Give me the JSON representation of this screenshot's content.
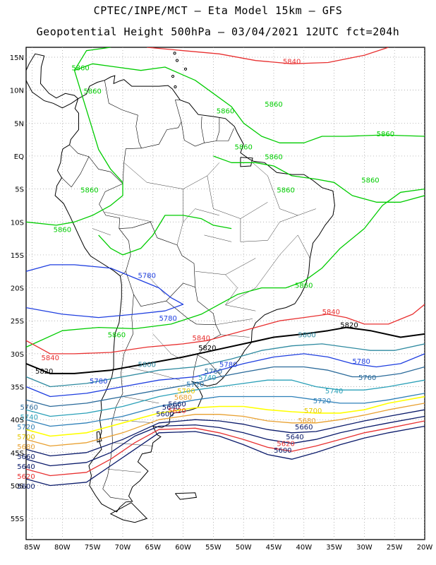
{
  "title_line1": "CPTEC/INPE/MCT –  Eta Model 15km – GFS",
  "title_line2": "Geopotential Height 500hPa – 03/04/2021 12UTC fct=204h",
  "lat_ticks": [
    "15N",
    "10N",
    "5N",
    "EQ",
    "5S",
    "10S",
    "15S",
    "20S",
    "25S",
    "30S",
    "35S",
    "40S",
    "45S",
    "50S",
    "55S"
  ],
  "lon_ticks": [
    "85W",
    "80W",
    "75W",
    "70W",
    "65W",
    "60W",
    "55W",
    "50W",
    "45W",
    "40W",
    "35W",
    "30W",
    "25W",
    "20W"
  ],
  "contours": [
    {
      "value": "5860",
      "color": "#00cc00"
    },
    {
      "value": "5840",
      "color": "#e83030"
    },
    {
      "value": "5820",
      "color": "#000000"
    },
    {
      "value": "5800",
      "color": "#2e8aa0"
    },
    {
      "value": "5780",
      "color": "#1f3fe0"
    },
    {
      "value": "5760",
      "color": "#2a6a9a"
    },
    {
      "value": "5740",
      "color": "#2aa0b8"
    },
    {
      "value": "5720",
      "color": "#2e80b8"
    },
    {
      "value": "5700",
      "color": "#ffff00"
    },
    {
      "value": "5680",
      "color": "#e8a030"
    },
    {
      "value": "5660",
      "color": "#0a1a6a"
    },
    {
      "value": "5640",
      "color": "#0a1a6a"
    },
    {
      "value": "5620",
      "color": "#e83030"
    },
    {
      "value": "5600",
      "color": "#0a1a6a"
    }
  ],
  "labels": [
    {
      "text": "5860",
      "c": 0,
      "lon": -77,
      "lat": 13
    },
    {
      "text": "5860",
      "c": 0,
      "lon": -75,
      "lat": 9.5
    },
    {
      "text": "5860",
      "c": 0,
      "lon": -53,
      "lat": 6.5
    },
    {
      "text": "5860",
      "c": 0,
      "lon": -45,
      "lat": 7.5
    },
    {
      "text": "5860",
      "c": 0,
      "lon": -50,
      "lat": 1
    },
    {
      "text": "5860",
      "c": 0,
      "lon": -45,
      "lat": -0.5
    },
    {
      "text": "5860",
      "c": 0,
      "lon": -26.5,
      "lat": 3
    },
    {
      "text": "5860",
      "c": 0,
      "lon": -29,
      "lat": -4
    },
    {
      "text": "5860",
      "c": 0,
      "lon": -43,
      "lat": -5.5
    },
    {
      "text": "5860",
      "c": 0,
      "lon": -75.5,
      "lat": -5.5
    },
    {
      "text": "5860",
      "c": 0,
      "lon": -80,
      "lat": -11.5
    },
    {
      "text": "5860",
      "c": 0,
      "lon": -40,
      "lat": -20
    },
    {
      "text": "5860",
      "c": 0,
      "lon": -71,
      "lat": -27.5
    },
    {
      "text": "5840",
      "c": 1,
      "lon": -42,
      "lat": 14
    },
    {
      "text": "5840",
      "c": 1,
      "lon": -35.5,
      "lat": -24
    },
    {
      "text": "5840",
      "c": 1,
      "lon": -57,
      "lat": -28
    },
    {
      "text": "5840",
      "c": 1,
      "lon": -82,
      "lat": -31
    },
    {
      "text": "5820",
      "c": 2,
      "lon": -32.5,
      "lat": -26
    },
    {
      "text": "5820",
      "c": 2,
      "lon": -56,
      "lat": -29.5
    },
    {
      "text": "5820",
      "c": 2,
      "lon": -83,
      "lat": -33
    },
    {
      "text": "5800",
      "c": 3,
      "lon": -39.5,
      "lat": -27.5
    },
    {
      "text": "5800",
      "c": 3,
      "lon": -66,
      "lat": -32
    },
    {
      "text": "5780",
      "c": 4,
      "lon": -66,
      "lat": -18.5
    },
    {
      "text": "5780",
      "c": 4,
      "lon": -62.5,
      "lat": -25
    },
    {
      "text": "5780",
      "c": 4,
      "lon": -52.5,
      "lat": -32
    },
    {
      "text": "5780",
      "c": 4,
      "lon": -30.5,
      "lat": -31.5
    },
    {
      "text": "5780",
      "c": 4,
      "lon": -74,
      "lat": -34.5
    },
    {
      "text": "5760",
      "c": 5,
      "lon": -55,
      "lat": -33
    },
    {
      "text": "5760",
      "c": 5,
      "lon": -29.5,
      "lat": -34
    },
    {
      "text": "5760",
      "c": 5,
      "lon": -85.5,
      "lat": -38.5
    },
    {
      "text": "5740",
      "c": 6,
      "lon": -56,
      "lat": -34
    },
    {
      "text": "5740",
      "c": 6,
      "lon": -35,
      "lat": -36
    },
    {
      "text": "5740",
      "c": 6,
      "lon": -85.5,
      "lat": -40
    },
    {
      "text": "5720",
      "c": 7,
      "lon": -58,
      "lat": -35
    },
    {
      "text": "5720",
      "c": 7,
      "lon": -37,
      "lat": -37.5
    },
    {
      "text": "5720",
      "c": 7,
      "lon": -86,
      "lat": -41.5
    },
    {
      "text": "5700",
      "c": 8,
      "lon": -59.5,
      "lat": -36
    },
    {
      "text": "5700",
      "c": 8,
      "lon": -38.5,
      "lat": -39
    },
    {
      "text": "5700",
      "c": 8,
      "lon": -86,
      "lat": -43
    },
    {
      "text": "5680",
      "c": 9,
      "lon": -60,
      "lat": -37
    },
    {
      "text": "5680",
      "c": 9,
      "lon": -39.5,
      "lat": -40.5
    },
    {
      "text": "5680",
      "c": 9,
      "lon": -86,
      "lat": -44.5
    },
    {
      "text": "5660",
      "c": 10,
      "lon": -61,
      "lat": -38
    },
    {
      "text": "5660",
      "c": 10,
      "lon": -40,
      "lat": -41.5
    },
    {
      "text": "5660",
      "c": 10,
      "lon": -86,
      "lat": -46
    },
    {
      "text": "5640",
      "c": 11,
      "lon": -62,
      "lat": -38.5
    },
    {
      "text": "5640",
      "c": 11,
      "lon": -41.5,
      "lat": -43
    },
    {
      "text": "5640",
      "c": 11,
      "lon": -86,
      "lat": -47.5
    },
    {
      "text": "5620",
      "c": 12,
      "lon": -61,
      "lat": -39
    },
    {
      "text": "5620",
      "c": 12,
      "lon": -43,
      "lat": -44
    },
    {
      "text": "5620",
      "c": 12,
      "lon": -86,
      "lat": -49
    },
    {
      "text": "5600",
      "c": 13,
      "lon": -63,
      "lat": -39.5
    },
    {
      "text": "5600",
      "c": 13,
      "lon": -43.5,
      "lat": -45
    },
    {
      "text": "5600",
      "c": 13,
      "lon": -86,
      "lat": -50.5
    }
  ]
}
